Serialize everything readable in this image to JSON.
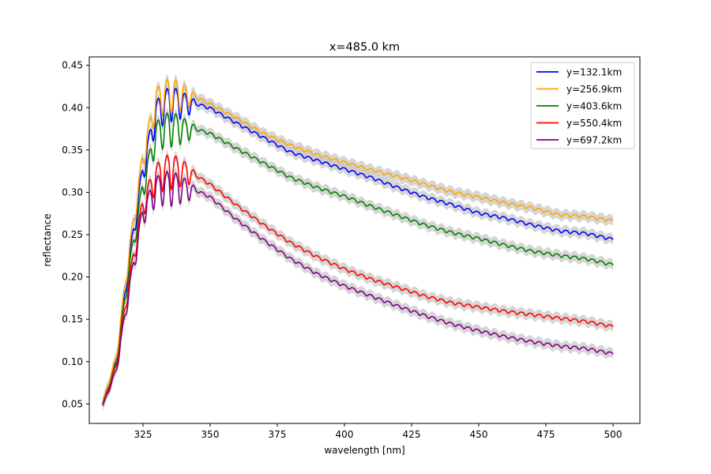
{
  "chart_data": {
    "type": "line",
    "title": "x=485.0 km",
    "xlabel": "wavelength [nm]",
    "ylabel": "reflectance",
    "xlim": [
      305,
      510
    ],
    "ylim": [
      0.027,
      0.46
    ],
    "xticks": [
      325,
      350,
      375,
      400,
      425,
      450,
      475,
      500
    ],
    "yticks": [
      0.05,
      0.1,
      0.15,
      0.2,
      0.25,
      0.3,
      0.35,
      0.4,
      0.45
    ],
    "ytick_labels": [
      "0.05",
      "0.10",
      "0.15",
      "0.20",
      "0.25",
      "0.30",
      "0.35",
      "0.40",
      "0.45"
    ],
    "grid": false,
    "legend_position": "top-right",
    "uncertainty_band_color": "#c8c8c8",
    "x": [
      310,
      315,
      320,
      325,
      330,
      335,
      340,
      350,
      360,
      370,
      380,
      390,
      400,
      410,
      420,
      430,
      440,
      450,
      460,
      470,
      480,
      490,
      500
    ],
    "series": [
      {
        "name": "y=132.1km",
        "color": "#0000ff",
        "values": [
          0.05,
          0.1,
          0.225,
          0.33,
          0.4,
          0.415,
          0.41,
          0.4,
          0.382,
          0.365,
          0.348,
          0.338,
          0.328,
          0.318,
          0.306,
          0.295,
          0.286,
          0.276,
          0.27,
          0.262,
          0.255,
          0.252,
          0.245
        ]
      },
      {
        "name": "y=256.9km",
        "color": "#ffa500",
        "values": [
          0.052,
          0.105,
          0.235,
          0.345,
          0.415,
          0.425,
          0.42,
          0.405,
          0.388,
          0.37,
          0.356,
          0.345,
          0.336,
          0.327,
          0.319,
          0.31,
          0.301,
          0.295,
          0.288,
          0.282,
          0.274,
          0.272,
          0.267
        ]
      },
      {
        "name": "y=403.6km",
        "color": "#008000",
        "values": [
          0.05,
          0.098,
          0.215,
          0.31,
          0.375,
          0.385,
          0.38,
          0.37,
          0.352,
          0.335,
          0.318,
          0.306,
          0.296,
          0.284,
          0.273,
          0.262,
          0.253,
          0.246,
          0.238,
          0.231,
          0.226,
          0.222,
          0.215
        ]
      },
      {
        "name": "y=550.4km",
        "color": "#ff0000",
        "values": [
          0.049,
          0.095,
          0.2,
          0.29,
          0.325,
          0.335,
          0.33,
          0.31,
          0.285,
          0.262,
          0.241,
          0.224,
          0.21,
          0.198,
          0.188,
          0.178,
          0.17,
          0.165,
          0.16,
          0.156,
          0.152,
          0.148,
          0.142
        ]
      },
      {
        "name": "y=697.2km",
        "color": "#800080",
        "values": [
          0.048,
          0.09,
          0.19,
          0.28,
          0.31,
          0.315,
          0.31,
          0.295,
          0.268,
          0.244,
          0.222,
          0.204,
          0.19,
          0.178,
          0.166,
          0.155,
          0.145,
          0.137,
          0.13,
          0.124,
          0.119,
          0.116,
          0.11
        ]
      }
    ]
  }
}
